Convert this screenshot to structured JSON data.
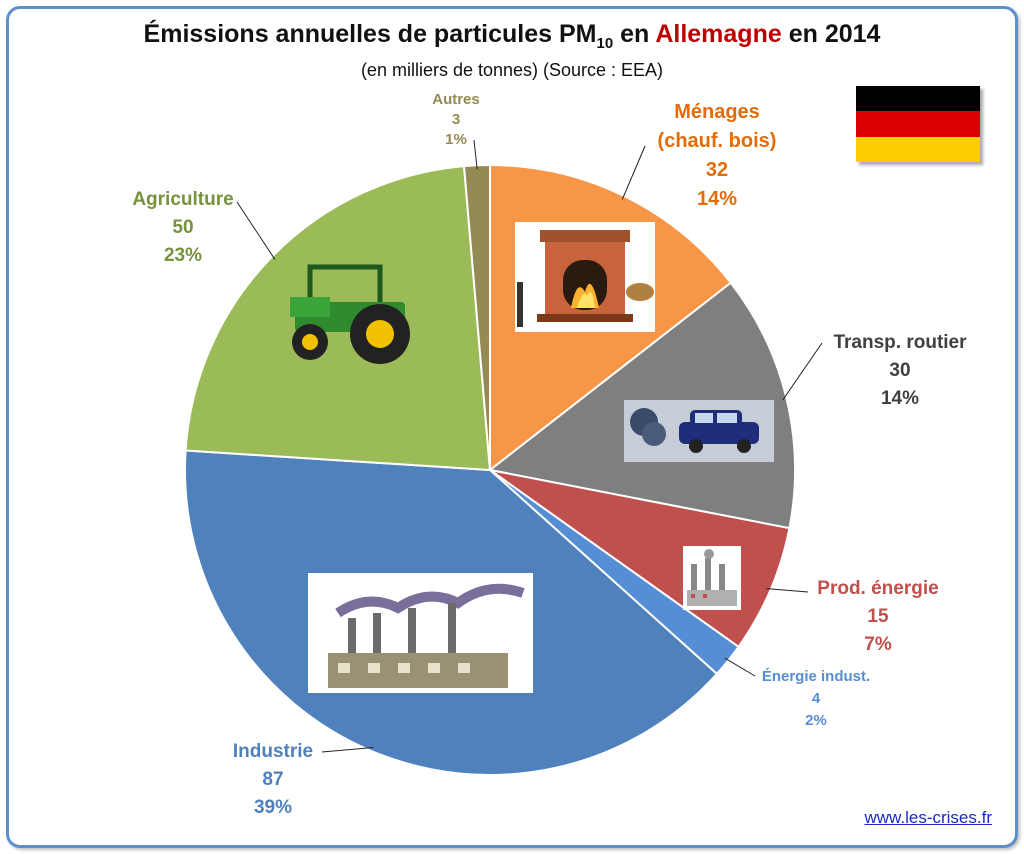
{
  "title": {
    "prefix": "Émissions annuelles de particules PM",
    "subscript": "10",
    "middle": " en ",
    "country": "Allemagne",
    "suffix": " en 2014"
  },
  "subtitle": "(en milliers de tonnes) (Source : EEA)",
  "website": "www.les-crises.fr",
  "flag": {
    "colors": [
      "#000000",
      "#dd0000",
      "#ffce00"
    ]
  },
  "chart_data": {
    "type": "pie",
    "unit": "milliers de tonnes",
    "slices": [
      {
        "name": "Ménages\n(chauf. bois)",
        "value": 32,
        "percent": "14%",
        "color": "#f79646",
        "label_color": "#e36c09"
      },
      {
        "name": "Transp. routier",
        "value": 30,
        "percent": "14%",
        "color": "#7f7f7f",
        "label_color": "#404040"
      },
      {
        "name": "Prod. énergie",
        "value": 15,
        "percent": "7%",
        "color": "#c0504d",
        "label_color": "#c0504d"
      },
      {
        "name": "Énergie indust.",
        "value": 4,
        "percent": "2%",
        "color": "#558ed5",
        "label_color": "#558ed5"
      },
      {
        "name": "Industrie",
        "value": 87,
        "percent": "39%",
        "color": "#4f81bd",
        "label_color": "#4f81bd"
      },
      {
        "name": "Agriculture",
        "value": 50,
        "percent": "23%",
        "color": "#9bbb59",
        "label_color": "#76923c"
      },
      {
        "name": "Autres",
        "value": 3,
        "percent": "1%",
        "color": "#948a54",
        "label_color": "#948a54"
      }
    ]
  }
}
